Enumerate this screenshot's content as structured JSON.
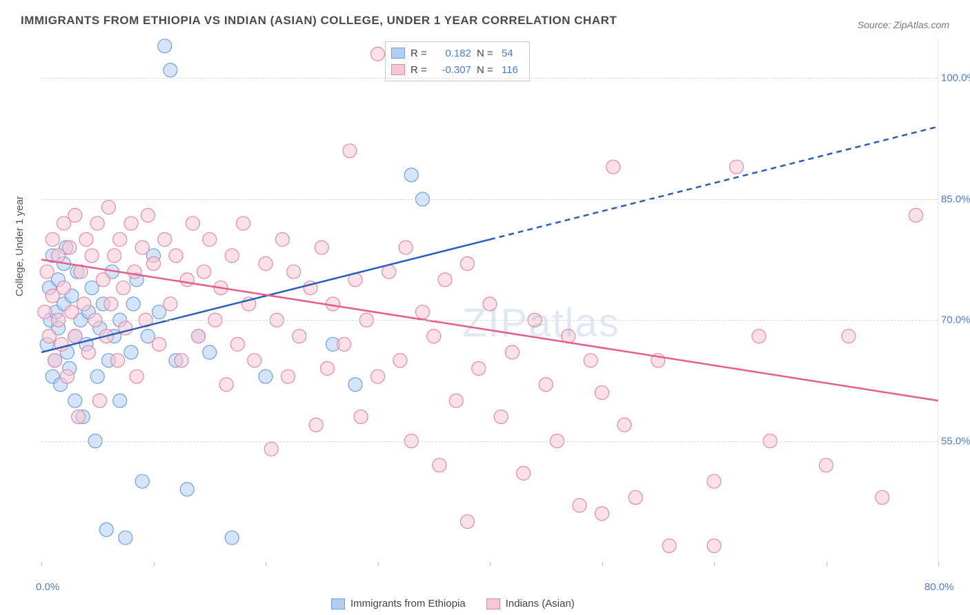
{
  "title": "IMMIGRANTS FROM ETHIOPIA VS INDIAN (ASIAN) COLLEGE, UNDER 1 YEAR CORRELATION CHART",
  "source": "Source: ZipAtlas.com",
  "y_axis_label": "College, Under 1 year",
  "watermark": "ZIPatlas",
  "chart": {
    "type": "scatter",
    "xlim": [
      0,
      80
    ],
    "ylim": [
      40,
      105
    ],
    "x_ticks": [
      0,
      10,
      20,
      30,
      40,
      50,
      60,
      70,
      80
    ],
    "x_tick_labels_shown": {
      "0": "0.0%",
      "80": "80.0%"
    },
    "y_ticks": [
      55,
      70,
      85,
      100
    ],
    "y_tick_labels": [
      "55.0%",
      "70.0%",
      "85.0%",
      "100.0%"
    ],
    "background_color": "#ffffff",
    "grid_color": "#d5d5d5",
    "axis_label_color": "#4a7bd0",
    "marker_radius": 10,
    "marker_opacity": 0.55,
    "series": [
      {
        "name": "Immigrants from Ethiopia",
        "color_fill": "#b3cdf2",
        "color_stroke": "#6d9fe0",
        "swatch_fill": "#b3cdf2",
        "swatch_border": "#6d9fe0",
        "R": "0.182",
        "N": "54",
        "regression": {
          "x1": 0,
          "y1": 66,
          "x2": 40,
          "y2": 80,
          "x2_dash": 80,
          "y2_dash": 94,
          "solid_color": "#2a5db8",
          "stroke_width": 2.5
        },
        "points": [
          [
            0.5,
            67
          ],
          [
            0.7,
            74
          ],
          [
            0.8,
            70
          ],
          [
            1,
            78
          ],
          [
            1,
            63
          ],
          [
            1.2,
            65
          ],
          [
            1.3,
            71
          ],
          [
            1.5,
            75
          ],
          [
            1.5,
            69
          ],
          [
            1.7,
            62
          ],
          [
            2,
            77
          ],
          [
            2,
            72
          ],
          [
            2.2,
            79
          ],
          [
            2.3,
            66
          ],
          [
            2.5,
            64
          ],
          [
            2.7,
            73
          ],
          [
            3,
            68
          ],
          [
            3,
            60
          ],
          [
            3.2,
            76
          ],
          [
            3.5,
            70
          ],
          [
            3.7,
            58
          ],
          [
            4,
            67
          ],
          [
            4.2,
            71
          ],
          [
            4.5,
            74
          ],
          [
            4.8,
            55
          ],
          [
            5,
            63
          ],
          [
            5.2,
            69
          ],
          [
            5.5,
            72
          ],
          [
            5.8,
            44
          ],
          [
            6,
            65
          ],
          [
            6.3,
            76
          ],
          [
            6.5,
            68
          ],
          [
            7,
            60
          ],
          [
            7,
            70
          ],
          [
            7.5,
            43
          ],
          [
            8,
            66
          ],
          [
            8.2,
            72
          ],
          [
            8.5,
            75
          ],
          [
            9,
            50
          ],
          [
            9.5,
            68
          ],
          [
            10,
            78
          ],
          [
            10.5,
            71
          ],
          [
            11,
            104
          ],
          [
            11.5,
            101
          ],
          [
            12,
            65
          ],
          [
            13,
            49
          ],
          [
            14,
            68
          ],
          [
            15,
            66
          ],
          [
            17,
            43
          ],
          [
            20,
            63
          ],
          [
            26,
            67
          ],
          [
            28,
            62
          ],
          [
            33,
            88
          ],
          [
            34,
            85
          ]
        ]
      },
      {
        "name": "Indians (Asian)",
        "color_fill": "#f5c6d3",
        "color_stroke": "#e388a4",
        "swatch_fill": "#f5c6d3",
        "swatch_border": "#e388a4",
        "R": "-0.307",
        "N": "116",
        "regression": {
          "x1": 0,
          "y1": 77.5,
          "x2": 80,
          "y2": 60,
          "solid_color": "#e75b8d",
          "stroke_width": 2.5
        },
        "points": [
          [
            0.3,
            71
          ],
          [
            0.5,
            76
          ],
          [
            0.7,
            68
          ],
          [
            1,
            80
          ],
          [
            1,
            73
          ],
          [
            1.2,
            65
          ],
          [
            1.5,
            78
          ],
          [
            1.5,
            70
          ],
          [
            1.8,
            67
          ],
          [
            2,
            82
          ],
          [
            2,
            74
          ],
          [
            2.3,
            63
          ],
          [
            2.5,
            79
          ],
          [
            2.7,
            71
          ],
          [
            3,
            83
          ],
          [
            3,
            68
          ],
          [
            3.3,
            58
          ],
          [
            3.5,
            76
          ],
          [
            3.8,
            72
          ],
          [
            4,
            80
          ],
          [
            4.2,
            66
          ],
          [
            4.5,
            78
          ],
          [
            4.8,
            70
          ],
          [
            5,
            82
          ],
          [
            5.2,
            60
          ],
          [
            5.5,
            75
          ],
          [
            5.8,
            68
          ],
          [
            6,
            84
          ],
          [
            6.2,
            72
          ],
          [
            6.5,
            78
          ],
          [
            6.8,
            65
          ],
          [
            7,
            80
          ],
          [
            7.3,
            74
          ],
          [
            7.5,
            69
          ],
          [
            8,
            82
          ],
          [
            8.3,
            76
          ],
          [
            8.5,
            63
          ],
          [
            9,
            79
          ],
          [
            9.3,
            70
          ],
          [
            9.5,
            83
          ],
          [
            10,
            77
          ],
          [
            10.5,
            67
          ],
          [
            11,
            80
          ],
          [
            11.5,
            72
          ],
          [
            12,
            78
          ],
          [
            12.5,
            65
          ],
          [
            13,
            75
          ],
          [
            13.5,
            82
          ],
          [
            14,
            68
          ],
          [
            14.5,
            76
          ],
          [
            15,
            80
          ],
          [
            15.5,
            70
          ],
          [
            16,
            74
          ],
          [
            16.5,
            62
          ],
          [
            17,
            78
          ],
          [
            17.5,
            67
          ],
          [
            18,
            82
          ],
          [
            18.5,
            72
          ],
          [
            19,
            65
          ],
          [
            20,
            77
          ],
          [
            20.5,
            54
          ],
          [
            21,
            70
          ],
          [
            21.5,
            80
          ],
          [
            22,
            63
          ],
          [
            22.5,
            76
          ],
          [
            23,
            68
          ],
          [
            24,
            74
          ],
          [
            24.5,
            57
          ],
          [
            25,
            79
          ],
          [
            25.5,
            64
          ],
          [
            26,
            72
          ],
          [
            27,
            67
          ],
          [
            27.5,
            91
          ],
          [
            28,
            75
          ],
          [
            28.5,
            58
          ],
          [
            29,
            70
          ],
          [
            30,
            103
          ],
          [
            30,
            63
          ],
          [
            31,
            76
          ],
          [
            32,
            65
          ],
          [
            32.5,
            79
          ],
          [
            33,
            55
          ],
          [
            34,
            71
          ],
          [
            35,
            68
          ],
          [
            35.5,
            52
          ],
          [
            36,
            75
          ],
          [
            37,
            60
          ],
          [
            38,
            77
          ],
          [
            38,
            45
          ],
          [
            39,
            64
          ],
          [
            40,
            72
          ],
          [
            41,
            58
          ],
          [
            42,
            66
          ],
          [
            43,
            51
          ],
          [
            44,
            70
          ],
          [
            45,
            62
          ],
          [
            46,
            55
          ],
          [
            47,
            68
          ],
          [
            48,
            47
          ],
          [
            49,
            65
          ],
          [
            50,
            61
          ],
          [
            51,
            89
          ],
          [
            52,
            57
          ],
          [
            53,
            48
          ],
          [
            55,
            65
          ],
          [
            56,
            42
          ],
          [
            60,
            50
          ],
          [
            62,
            89
          ],
          [
            64,
            68
          ],
          [
            65,
            55
          ],
          [
            70,
            52
          ],
          [
            72,
            68
          ],
          [
            75,
            48
          ],
          [
            78,
            83
          ],
          [
            60,
            42
          ],
          [
            50,
            46
          ]
        ]
      }
    ]
  },
  "stats_box": {
    "rows": [
      {
        "swatch_fill": "#b3cdf2",
        "swatch_border": "#6d9fe0",
        "r_label": "R =",
        "r_val": "0.182",
        "n_label": "N =",
        "n_val": "54"
      },
      {
        "swatch_fill": "#f5c6d3",
        "swatch_border": "#e388a4",
        "r_label": "R =",
        "r_val": "-0.307",
        "n_label": "N =",
        "n_val": "116"
      }
    ]
  },
  "legend": {
    "items": [
      {
        "swatch_fill": "#b3cdf2",
        "swatch_border": "#6d9fe0",
        "label": "Immigrants from Ethiopia"
      },
      {
        "swatch_fill": "#f5c6d3",
        "swatch_border": "#e388a4",
        "label": "Indians (Asian)"
      }
    ]
  }
}
